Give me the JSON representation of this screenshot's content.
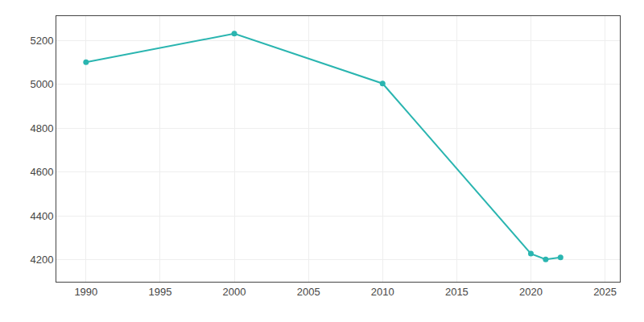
{
  "chart_data": {
    "type": "line",
    "x": [
      1990,
      2000,
      2010,
      2020,
      2021,
      2022
    ],
    "values": [
      5100,
      5230,
      5003,
      4228,
      4202,
      4211
    ],
    "color": "#2ab5b0",
    "marker": "circle",
    "line_style": "solid",
    "xlim": [
      1988,
      2026
    ],
    "ylim": [
      4100,
      5310
    ],
    "xticks": [
      1990,
      1995,
      2000,
      2005,
      2010,
      2015,
      2020,
      2025
    ],
    "yticks": [
      4200,
      4400,
      4600,
      4800,
      5000,
      5200
    ],
    "grid": true
  }
}
